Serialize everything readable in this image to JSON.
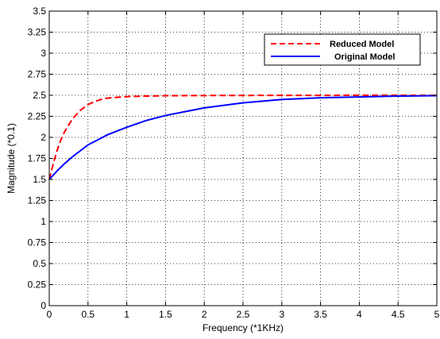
{
  "chart_data": {
    "type": "line",
    "title": "",
    "xlabel": "Frequency (*1KHz)",
    "ylabel": "Magnitude (*0.1)",
    "xlim": [
      0,
      5
    ],
    "ylim": [
      0,
      3.5
    ],
    "grid": true,
    "grid_style": "dotted",
    "legend_position": "top-right",
    "x_ticks": [
      "0",
      "0.5",
      "1",
      "1.5",
      "2",
      "2.5",
      "3",
      "3.5",
      "4",
      "4.5",
      "5"
    ],
    "y_ticks": [
      "0",
      "0.25",
      "0.5",
      "0.75",
      "1",
      "1.25",
      "1.5",
      "1.75",
      "2",
      "2.25",
      "2.5",
      "2.75",
      "3",
      "3.25",
      "3.5"
    ],
    "series": [
      {
        "name": "Reduced Model",
        "color": "#ff0000",
        "style": "dashed",
        "x": [
          0,
          0.05,
          0.1,
          0.15,
          0.2,
          0.3,
          0.4,
          0.5,
          0.6,
          0.7,
          0.8,
          1.0,
          1.25,
          1.5,
          2.0,
          2.5,
          3.0,
          3.5,
          4.0,
          4.5,
          5.0
        ],
        "y": [
          1.5,
          1.68,
          1.84,
          1.97,
          2.07,
          2.22,
          2.32,
          2.39,
          2.43,
          2.46,
          2.47,
          2.485,
          2.49,
          2.495,
          2.497,
          2.498,
          2.499,
          2.499,
          2.5,
          2.5,
          2.5
        ]
      },
      {
        "name": "Original Model",
        "color": "#0000ff",
        "style": "solid",
        "x": [
          0,
          0.1,
          0.2,
          0.3,
          0.5,
          0.75,
          1.0,
          1.25,
          1.5,
          2.0,
          2.5,
          3.0,
          3.5,
          4.0,
          4.5,
          5.0
        ],
        "y": [
          1.5,
          1.6,
          1.69,
          1.77,
          1.91,
          2.03,
          2.12,
          2.2,
          2.26,
          2.35,
          2.41,
          2.45,
          2.47,
          2.48,
          2.49,
          2.495
        ]
      }
    ]
  },
  "legend": {
    "reduced_label": "Reduced Model",
    "original_label": "Original Model"
  }
}
